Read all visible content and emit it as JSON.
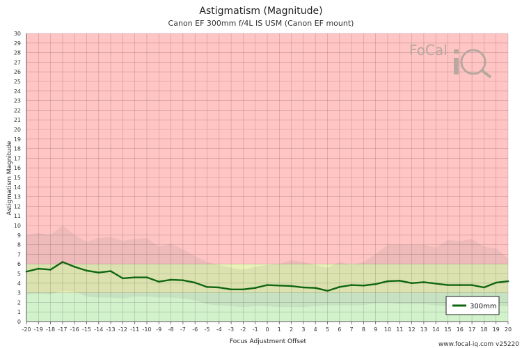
{
  "chart_data": {
    "type": "line",
    "title": "Astigmatism (Magnitude)",
    "subtitle": "Canon EF 300mm f/4L IS USM (Canon EF mount)",
    "xlabel": "Focus Adjustment Offset",
    "ylabel": "Astigmatism Magnitude",
    "xlim": [
      -20,
      20
    ],
    "ylim": [
      0,
      30
    ],
    "grid": true,
    "legend_position": "bottom-right",
    "zones": [
      {
        "from": 0,
        "to": 3,
        "color": "#d2f2cc"
      },
      {
        "from": 3,
        "to": 6,
        "color": "#eaf2b8"
      },
      {
        "from": 6,
        "to": 30,
        "color": "#ffc4c4"
      }
    ],
    "series": [
      {
        "name": "300mm",
        "color": "#116611",
        "x": [
          -20,
          -19,
          -18,
          -17,
          -16,
          -15,
          -14,
          -13,
          -12,
          -11,
          -10,
          -9,
          -8,
          -7,
          -6,
          -5,
          -4,
          -3,
          -2,
          -1,
          0,
          1,
          2,
          3,
          4,
          5,
          6,
          7,
          8,
          9,
          10,
          11,
          12,
          13,
          14,
          15,
          16,
          17,
          18,
          19,
          20
        ],
        "values": [
          5.2,
          5.5,
          5.4,
          6.2,
          5.7,
          5.3,
          5.1,
          5.25,
          4.5,
          4.6,
          4.6,
          4.15,
          4.35,
          4.3,
          4.05,
          3.6,
          3.55,
          3.35,
          3.35,
          3.5,
          3.8,
          3.75,
          3.7,
          3.55,
          3.5,
          3.2,
          3.6,
          3.8,
          3.75,
          3.9,
          4.2,
          4.25,
          4.0,
          4.1,
          3.95,
          3.8,
          3.8,
          3.8,
          3.55,
          4.05,
          4.2
        ]
      }
    ],
    "bands": {
      "upper": [
        9.0,
        9.2,
        9.0,
        10.0,
        9.0,
        8.3,
        8.7,
        8.8,
        8.4,
        8.6,
        8.7,
        7.8,
        8.1,
        7.5,
        6.8,
        6.2,
        5.9,
        5.6,
        5.4,
        5.7,
        5.9,
        6.0,
        6.4,
        6.2,
        5.9,
        5.6,
        6.2,
        5.9,
        6.2,
        7.0,
        8.0,
        8.0,
        8.0,
        8.0,
        7.7,
        8.5,
        8.4,
        8.6,
        7.8,
        7.6,
        6.6
      ],
      "lower": [
        2.8,
        2.9,
        2.8,
        3.2,
        3.1,
        2.6,
        2.5,
        2.5,
        2.4,
        2.6,
        2.6,
        2.5,
        2.5,
        2.4,
        2.2,
        1.8,
        1.7,
        1.6,
        1.5,
        1.6,
        1.6,
        1.5,
        1.5,
        1.5,
        1.6,
        1.7,
        1.7,
        1.7,
        1.7,
        1.9,
        1.9,
        1.8,
        1.8,
        1.8,
        1.7,
        1.6,
        1.6,
        1.6,
        1.6,
        1.6,
        1.6
      ]
    }
  },
  "branding": {
    "logo_text": "FoCal iQ",
    "footer": "www.focal-iq.com  v25220"
  }
}
